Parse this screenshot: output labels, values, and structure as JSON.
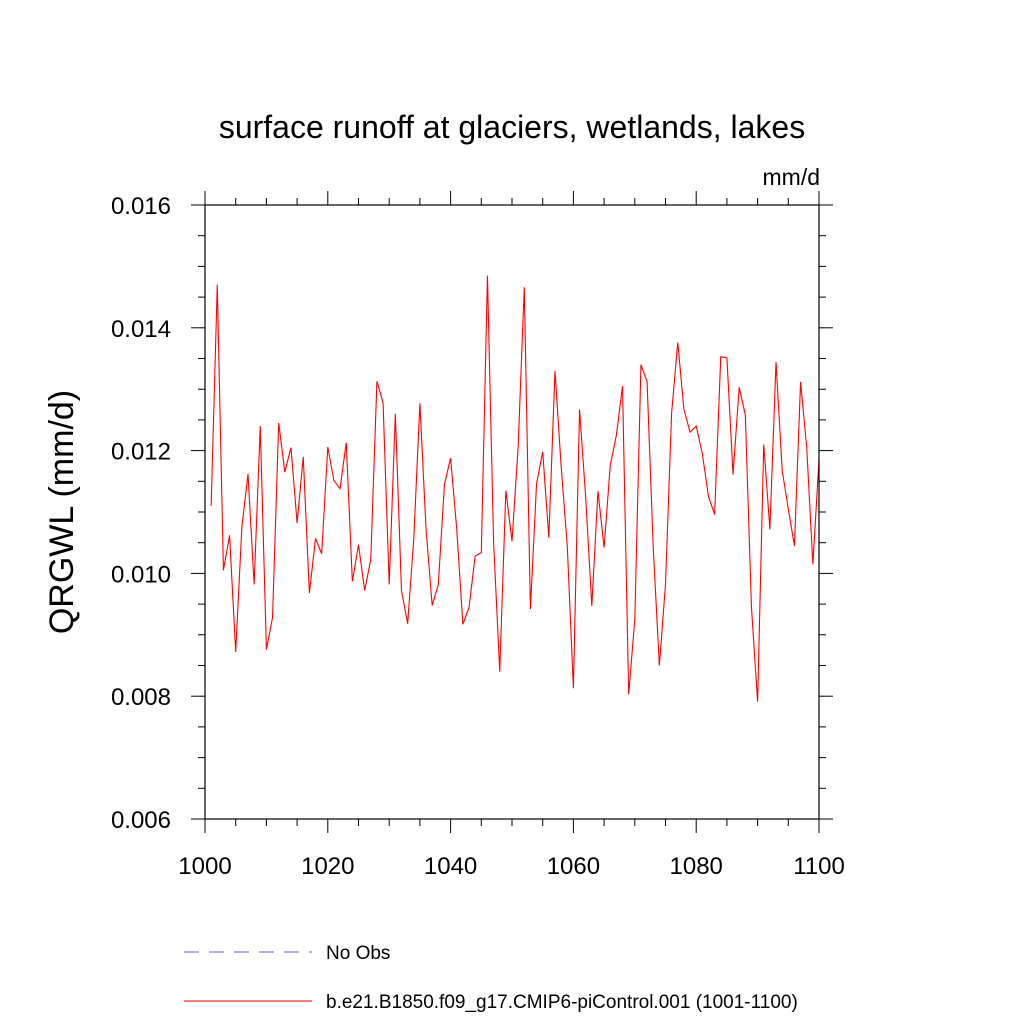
{
  "chart_data": {
    "type": "line",
    "title": "surface runoff at glaciers, wetlands, lakes",
    "units": "mm/d",
    "ylabel": "QRGWL  (mm/d)",
    "xlabel": "",
    "xlim": [
      1000,
      1100
    ],
    "ylim": [
      0.006,
      0.016
    ],
    "x_ticks": [
      1000,
      1020,
      1040,
      1060,
      1080,
      1100
    ],
    "y_ticks": [
      0.006,
      0.008,
      0.01,
      0.012,
      0.014,
      0.016
    ],
    "x_tick_labels": [
      "1000",
      "1020",
      "1040",
      "1060",
      "1080",
      "1100"
    ],
    "y_tick_labels": [
      "0.006",
      "0.008",
      "0.010",
      "0.012",
      "0.014",
      "0.016"
    ],
    "grid": false,
    "legend_position": "bottom-left",
    "series": [
      {
        "name": "No Obs",
        "color": "#6a5acd",
        "style": "dashed",
        "x": [],
        "values": []
      },
      {
        "name": "b.e21.B1850.f09_g17.CMIP6-piControl.001 (1001-1100)",
        "color": "#ff0000",
        "style": "solid",
        "x": [
          1001,
          1002,
          1003,
          1004,
          1005,
          1006,
          1007,
          1008,
          1009,
          1010,
          1011,
          1012,
          1013,
          1014,
          1015,
          1016,
          1017,
          1018,
          1019,
          1020,
          1021,
          1022,
          1023,
          1024,
          1025,
          1026,
          1027,
          1028,
          1029,
          1030,
          1031,
          1032,
          1033,
          1034,
          1035,
          1036,
          1037,
          1038,
          1039,
          1040,
          1041,
          1042,
          1043,
          1044,
          1045,
          1046,
          1047,
          1048,
          1049,
          1050,
          1051,
          1052,
          1053,
          1054,
          1055,
          1056,
          1057,
          1058,
          1059,
          1060,
          1061,
          1062,
          1063,
          1064,
          1065,
          1066,
          1067,
          1068,
          1069,
          1070,
          1071,
          1072,
          1073,
          1074,
          1075,
          1076,
          1077,
          1078,
          1079,
          1080,
          1081,
          1082,
          1083,
          1084,
          1085,
          1086,
          1087,
          1088,
          1089,
          1090,
          1091,
          1092,
          1093,
          1094,
          1095,
          1096,
          1097,
          1098,
          1099,
          1100
        ],
        "values": [
          0.0111,
          0.0147,
          0.01005,
          0.01062,
          0.00872,
          0.01075,
          0.01162,
          0.00982,
          0.0124,
          0.00876,
          0.00928,
          0.01245,
          0.01165,
          0.01205,
          0.01082,
          0.0119,
          0.00968,
          0.01057,
          0.01032,
          0.01206,
          0.01151,
          0.01138,
          0.01213,
          0.00987,
          0.01047,
          0.00972,
          0.01023,
          0.01313,
          0.01278,
          0.00982,
          0.0126,
          0.00972,
          0.00918,
          0.01056,
          0.01277,
          0.01072,
          0.00948,
          0.00982,
          0.01145,
          0.01188,
          0.01072,
          0.00917,
          0.00945,
          0.01028,
          0.01034,
          0.01485,
          0.01052,
          0.0084,
          0.01135,
          0.01052,
          0.01206,
          0.01466,
          0.00942,
          0.01146,
          0.01198,
          0.01058,
          0.0133,
          0.01175,
          0.01045,
          0.00813,
          0.01267,
          0.01124,
          0.00947,
          0.01134,
          0.01042,
          0.01176,
          0.01225,
          0.01305,
          0.00803,
          0.00925,
          0.0134,
          0.01312,
          0.01042,
          0.0085,
          0.00982,
          0.01262,
          0.01376,
          0.01267,
          0.0123,
          0.0124,
          0.01195,
          0.01125,
          0.01096,
          0.01353,
          0.01351,
          0.01161,
          0.01303,
          0.01258,
          0.00945,
          0.00791,
          0.0121,
          0.01072,
          0.01344,
          0.01168,
          0.01105,
          0.01045,
          0.01312,
          0.01205,
          0.01015,
          0.01185
        ]
      }
    ]
  }
}
